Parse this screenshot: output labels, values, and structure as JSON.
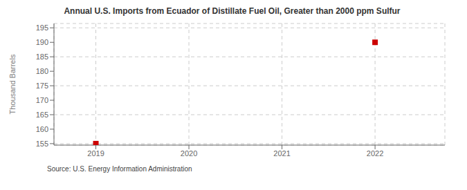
{
  "chart_data": {
    "type": "scatter",
    "title": "Annual U.S. Imports from Ecuador of Distillate Fuel Oil, Greater than 2000 ppm Sulfur",
    "ylabel": "Thousand Barrels",
    "annotations": [
      "Source: U.S. Energy Information Administration"
    ],
    "x": [
      2019,
      2022
    ],
    "values": [
      155,
      190
    ],
    "color": "#cc0000",
    "marker": "square",
    "xlim": [
      2018.55,
      2022.75
    ],
    "ylim": [
      154.5,
      196.5
    ],
    "xticks": [
      2019,
      2020,
      2021,
      2022
    ],
    "yticks": [
      155,
      160,
      165,
      170,
      175,
      180,
      185,
      190,
      195
    ],
    "grid": true
  }
}
